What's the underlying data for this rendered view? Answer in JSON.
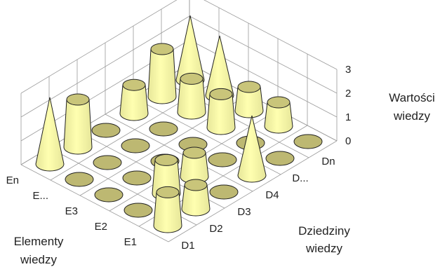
{
  "chart_data": {
    "type": "bar",
    "shape": "3d-cone-and-frustum",
    "x_axis": {
      "label_line1": "Dziedziny",
      "label_line2": "wiedzy",
      "categories": [
        "D1",
        "D2",
        "D3",
        "D4",
        "D...",
        "Dn"
      ]
    },
    "y_axis": {
      "label_line1": "Elementy",
      "label_line2": "wiedzy",
      "categories": [
        "E1",
        "E2",
        "E3",
        "E...",
        "En"
      ]
    },
    "z_axis": {
      "label_line1": "Wartości",
      "label_line2": "wiedzy",
      "ticks": [
        "0",
        "1",
        "2",
        "3"
      ],
      "range": [
        0,
        3
      ]
    },
    "grid": true,
    "values": [
      [
        1.4,
        1.0,
        0,
        2.5,
        0,
        0
      ],
      [
        0,
        1.4,
        1.0,
        0,
        0,
        1.0
      ],
      [
        0,
        0,
        0,
        0,
        1.4,
        1.0
      ],
      [
        0,
        0,
        0,
        0,
        1.4,
        2.5
      ],
      [
        2.8,
        2.0,
        0,
        1.2,
        2.0,
        2.7
      ]
    ],
    "colors": {
      "side": "#ffffb0",
      "side_shade": "#e6e699",
      "top": "#c9c57a",
      "disc": "#bdb872",
      "outline": "#222222",
      "grid": "#9a9a9a"
    }
  }
}
